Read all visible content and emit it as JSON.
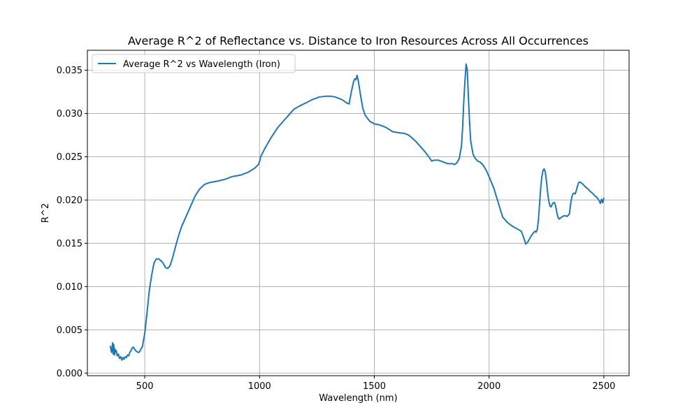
{
  "chart_data": {
    "type": "line",
    "title": "Average R^2 of Reflectance vs. Distance to Iron Resources Across All Occurrences",
    "xlabel": "Wavelength (nm)",
    "ylabel": "R^2",
    "xlim": [
      250,
      2610
    ],
    "ylim": [
      -0.0003,
      0.0373
    ],
    "xticks": [
      500,
      1000,
      1500,
      2000,
      2500
    ],
    "xtick_labels": [
      "500",
      "1000",
      "1500",
      "2000",
      "2500"
    ],
    "yticks": [
      0.0,
      0.005,
      0.01,
      0.015,
      0.02,
      0.025,
      0.03,
      0.035
    ],
    "ytick_labels": [
      "0.000",
      "0.005",
      "0.010",
      "0.015",
      "0.020",
      "0.025",
      "0.030",
      "0.035"
    ],
    "grid": true,
    "legend_position": "upper-left",
    "color": "#1f77b4",
    "series": [
      {
        "name": "Average R^2 vs Wavelength (Iron)",
        "x": [
          350,
          355,
          360,
          362,
          365,
          368,
          370,
          373,
          376,
          380,
          385,
          390,
          395,
          400,
          405,
          410,
          415,
          420,
          425,
          430,
          435,
          440,
          445,
          450,
          455,
          460,
          465,
          470,
          475,
          480,
          490,
          500,
          510,
          520,
          530,
          540,
          550,
          560,
          570,
          580,
          590,
          600,
          610,
          620,
          630,
          640,
          650,
          660,
          680,
          700,
          720,
          740,
          760,
          780,
          800,
          820,
          850,
          880,
          900,
          920,
          950,
          980,
          995,
          1000,
          1005,
          1020,
          1050,
          1080,
          1100,
          1130,
          1150,
          1170,
          1200,
          1230,
          1260,
          1290,
          1310,
          1330,
          1350,
          1365,
          1380,
          1390,
          1400,
          1410,
          1415,
          1420,
          1425,
          1430,
          1440,
          1450,
          1460,
          1480,
          1500,
          1520,
          1550,
          1580,
          1600,
          1630,
          1650,
          1680,
          1700,
          1720,
          1740,
          1750,
          1760,
          1780,
          1800,
          1820,
          1840,
          1850,
          1860,
          1870,
          1880,
          1885,
          1890,
          1895,
          1900,
          1905,
          1910,
          1915,
          1920,
          1930,
          1940,
          1950,
          1960,
          1975,
          1990,
          2000,
          2020,
          2040,
          2050,
          2060,
          2080,
          2100,
          2120,
          2140,
          2150,
          2160,
          2170,
          2180,
          2190,
          2200,
          2205,
          2210,
          2215,
          2220,
          2225,
          2230,
          2235,
          2240,
          2245,
          2250,
          2255,
          2260,
          2265,
          2270,
          2275,
          2280,
          2285,
          2290,
          2295,
          2300,
          2305,
          2310,
          2320,
          2330,
          2340,
          2350,
          2355,
          2360,
          2365,
          2370,
          2375,
          2380,
          2385,
          2390,
          2395,
          2400,
          2410,
          2420,
          2430,
          2440,
          2450,
          2460,
          2470,
          2480,
          2485,
          2490,
          2495,
          2500
        ],
        "y": [
          0.0031,
          0.0024,
          0.0035,
          0.0022,
          0.0033,
          0.0021,
          0.0028,
          0.0024,
          0.0026,
          0.002,
          0.0022,
          0.0017,
          0.0019,
          0.0015,
          0.0018,
          0.0016,
          0.0019,
          0.0018,
          0.0021,
          0.002,
          0.0024,
          0.0026,
          0.0029,
          0.003,
          0.0028,
          0.0026,
          0.0025,
          0.0024,
          0.0024,
          0.0026,
          0.0031,
          0.0046,
          0.007,
          0.0096,
          0.0113,
          0.0127,
          0.0132,
          0.0132,
          0.013,
          0.0127,
          0.0122,
          0.0121,
          0.0124,
          0.0132,
          0.0142,
          0.0152,
          0.0161,
          0.0169,
          0.0181,
          0.0193,
          0.0205,
          0.0213,
          0.0218,
          0.022,
          0.0221,
          0.0222,
          0.0224,
          0.0227,
          0.0228,
          0.0229,
          0.0232,
          0.0237,
          0.0241,
          0.0244,
          0.025,
          0.0258,
          0.0272,
          0.0284,
          0.029,
          0.0299,
          0.0305,
          0.0308,
          0.0312,
          0.0316,
          0.0319,
          0.032,
          0.032,
          0.0319,
          0.0317,
          0.0315,
          0.0312,
          0.0311,
          0.0325,
          0.0337,
          0.034,
          0.0339,
          0.0344,
          0.0338,
          0.0321,
          0.0306,
          0.0298,
          0.0291,
          0.0288,
          0.0287,
          0.0284,
          0.0279,
          0.0278,
          0.0277,
          0.0275,
          0.0268,
          0.0262,
          0.0256,
          0.0249,
          0.0245,
          0.0246,
          0.0246,
          0.0244,
          0.0242,
          0.0242,
          0.0241,
          0.0243,
          0.0248,
          0.0263,
          0.0285,
          0.0315,
          0.0338,
          0.0357,
          0.035,
          0.0318,
          0.029,
          0.0268,
          0.0253,
          0.0248,
          0.0245,
          0.0244,
          0.024,
          0.0233,
          0.0227,
          0.0214,
          0.0197,
          0.0188,
          0.018,
          0.0174,
          0.017,
          0.0167,
          0.0164,
          0.0157,
          0.0149,
          0.0152,
          0.0157,
          0.0161,
          0.0164,
          0.0163,
          0.0166,
          0.0177,
          0.0196,
          0.0214,
          0.0227,
          0.0234,
          0.0236,
          0.0232,
          0.0222,
          0.0209,
          0.0199,
          0.0193,
          0.0192,
          0.0195,
          0.0197,
          0.0197,
          0.0193,
          0.0186,
          0.018,
          0.0178,
          0.0179,
          0.0181,
          0.0182,
          0.0181,
          0.0184,
          0.0195,
          0.0203,
          0.0207,
          0.0208,
          0.0207,
          0.0211,
          0.0216,
          0.022,
          0.0221,
          0.022,
          0.0218,
          0.0215,
          0.0213,
          0.021,
          0.0208,
          0.0205,
          0.0203,
          0.0199,
          0.0196,
          0.0201,
          0.0197,
          0.0202
        ]
      }
    ]
  }
}
